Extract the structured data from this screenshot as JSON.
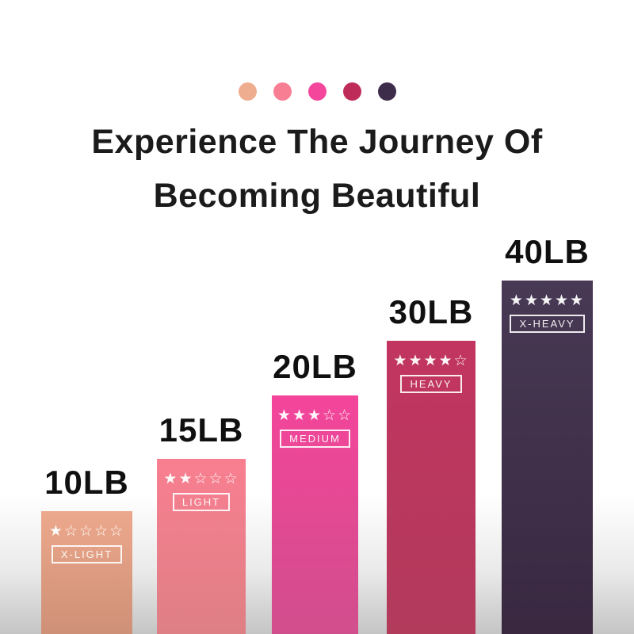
{
  "palette": {
    "dots": [
      "#efad90",
      "#f87f93",
      "#f4479c",
      "#be2c59",
      "#3e2c4b"
    ]
  },
  "title": {
    "line1": "Experience The Journey Of",
    "line2": "Becoming Beautiful"
  },
  "bars": [
    {
      "weight": "10LB",
      "stars": "★☆☆☆☆",
      "rating": 1,
      "level": "X-LIGHT",
      "color_top": "#eca88c",
      "color_bottom": "#ce9077"
    },
    {
      "weight": "15LB",
      "stars": "★★☆☆☆",
      "rating": 2,
      "level": "LIGHT",
      "color_top": "#f97f90",
      "color_bottom": "#de7f85"
    },
    {
      "weight": "20LB",
      "stars": "★★★☆☆",
      "rating": 3,
      "level": "MEDIUM",
      "color_top": "#f4459b",
      "color_bottom": "#d14e8c"
    },
    {
      "weight": "30LB",
      "stars": "★★★★☆",
      "rating": 4,
      "level": "HEAVY",
      "color_top": "#c23561",
      "color_bottom": "#b23a5b"
    },
    {
      "weight": "40LB",
      "stars": "★★★★★",
      "rating": 5,
      "level": "X-HEAVY",
      "color_top": "#483954",
      "color_bottom": "#392840"
    }
  ],
  "chart_data": {
    "type": "bar",
    "title": "Experience The Journey Of Becoming Beautiful",
    "categories": [
      "X-LIGHT",
      "LIGHT",
      "MEDIUM",
      "HEAVY",
      "X-HEAVY"
    ],
    "values": [
      10,
      15,
      20,
      30,
      40
    ],
    "unit": "LB",
    "value_labels": [
      "10LB",
      "15LB",
      "20LB",
      "30LB",
      "40LB"
    ],
    "star_ratings": [
      1,
      2,
      3,
      4,
      5
    ],
    "bar_colors": [
      "#eca88c",
      "#f97f90",
      "#f4459b",
      "#c23561",
      "#483954"
    ],
    "legend": "none",
    "grid": false,
    "axes": "hidden",
    "ylim": [
      0,
      45
    ]
  }
}
